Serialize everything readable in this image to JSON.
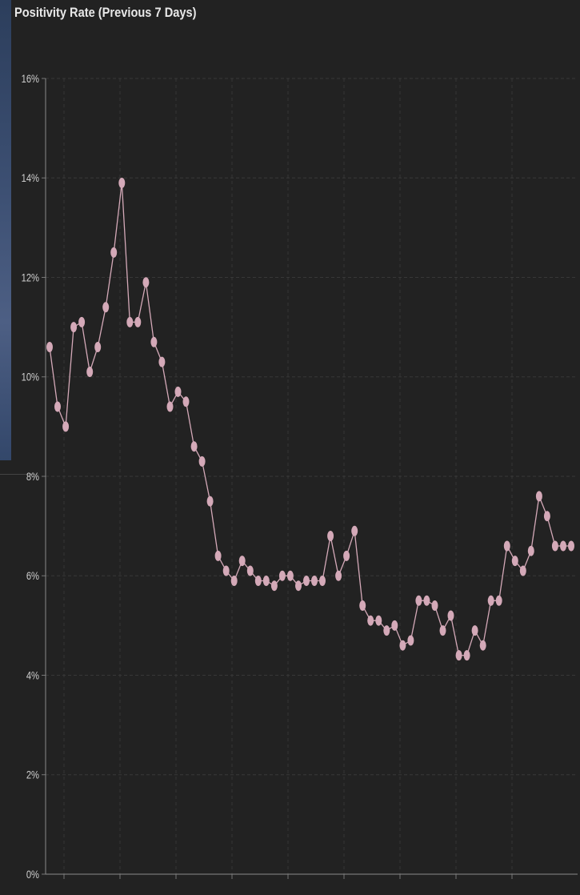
{
  "chart_data": {
    "type": "line",
    "title": "Positivity Rate (Previous 7 Days)",
    "xlabel": "",
    "ylabel": "",
    "ylim": [
      0,
      16
    ],
    "y_ticks": [
      {
        "value": 0,
        "label": "0%"
      },
      {
        "value": 2,
        "label": "2%"
      },
      {
        "value": 4,
        "label": "4%"
      },
      {
        "value": 6,
        "label": "6%"
      },
      {
        "value": 8,
        "label": "8%"
      },
      {
        "value": 10,
        "label": "10%"
      },
      {
        "value": 12,
        "label": "12%"
      },
      {
        "value": 14,
        "label": "14%"
      },
      {
        "value": 16,
        "label": "16%"
      }
    ],
    "grid": true,
    "color": "#d4a9b8",
    "x": [
      0,
      1,
      2,
      3,
      4,
      5,
      6,
      7,
      8,
      9,
      10,
      11,
      12,
      13,
      14,
      15,
      16,
      17,
      18,
      19,
      20,
      21,
      22,
      23,
      24,
      25,
      26,
      27,
      28,
      29,
      30,
      31,
      32,
      33,
      34,
      35,
      36,
      37,
      38,
      39,
      40,
      41,
      42,
      43,
      44,
      45,
      46,
      47,
      48,
      49,
      50,
      51,
      52,
      53,
      54,
      55,
      56,
      57,
      58,
      59,
      60,
      61,
      62,
      63,
      64,
      65
    ],
    "values": [
      10.6,
      9.4,
      9.0,
      11.0,
      11.1,
      10.1,
      10.6,
      11.4,
      12.5,
      13.9,
      11.1,
      11.1,
      11.9,
      10.7,
      10.3,
      9.4,
      9.7,
      9.5,
      8.6,
      8.3,
      7.5,
      6.4,
      6.1,
      5.9,
      6.3,
      6.1,
      5.9,
      5.9,
      5.8,
      6.0,
      6.0,
      5.8,
      5.9,
      5.9,
      5.9,
      6.8,
      6.0,
      6.4,
      6.9,
      5.4,
      5.1,
      5.1,
      4.9,
      5.0,
      4.6,
      4.7,
      5.5,
      5.5,
      5.4,
      4.9,
      5.2,
      4.4,
      4.4,
      4.9,
      4.6,
      5.5,
      5.5,
      6.6,
      6.3,
      6.1,
      6.5,
      7.6,
      7.2,
      6.6,
      6.6,
      6.6
    ]
  }
}
